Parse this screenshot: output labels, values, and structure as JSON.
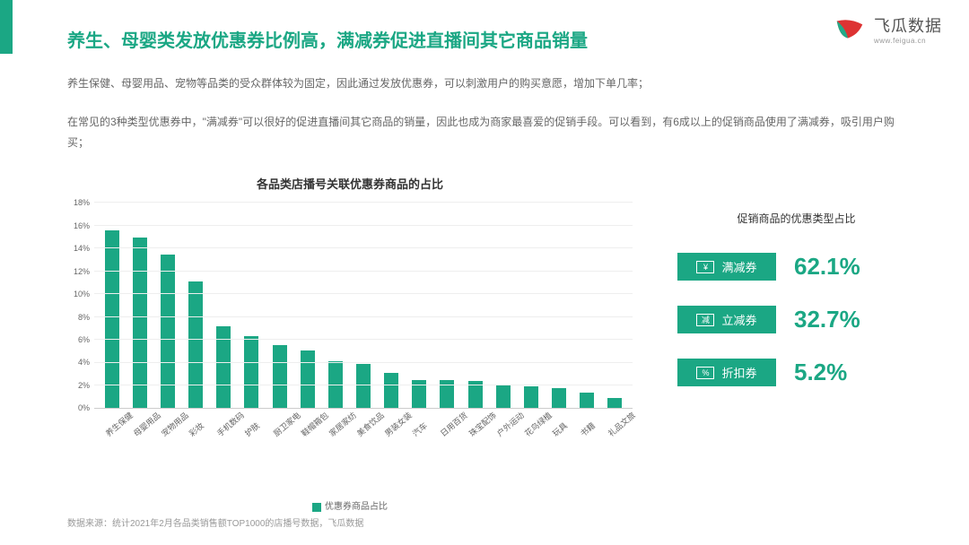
{
  "brand": {
    "title": "飞瓜数据",
    "url": "www.feigua.cn"
  },
  "colors": {
    "primary": "#1ba784",
    "text": "#666",
    "grid": "#eee"
  },
  "title": "养生、母婴类发放优惠券比例高，满减券促进直播间其它商品销量",
  "desc1": "养生保健、母婴用品、宠物等品类的受众群体较为固定，因此通过发放优惠券，可以刺激用户的购买意愿，增加下单几率；",
  "desc2": "在常见的3种类型优惠券中，\"满减券\"可以很好的促进直播间其它商品的销量，因此也成为商家最喜爱的促销手段。可以看到，有6成以上的促销商品使用了满减券，吸引用户购买；",
  "chart": {
    "title": "各品类店播号关联优惠券商品的占比",
    "type": "bar",
    "ymax": 18,
    "ytick": 2,
    "categories": [
      "养生保健",
      "母婴用品",
      "宠物用品",
      "彩妆",
      "手机数码",
      "护肤",
      "厨卫家电",
      "鞋帽箱包",
      "家居家纺",
      "美食饮品",
      "男装女装",
      "汽车",
      "日用百货",
      "珠宝配饰",
      "户外运动",
      "花鸟绿植",
      "玩具",
      "书籍",
      "礼品文旅"
    ],
    "values": [
      15.6,
      15.0,
      13.5,
      11.1,
      7.2,
      6.3,
      5.5,
      5.1,
      4.1,
      3.9,
      3.1,
      2.5,
      2.5,
      2.4,
      2.1,
      1.9,
      1.8,
      1.4,
      0.9
    ],
    "bar_color": "#1ba784",
    "legend": "优惠券商品占比"
  },
  "right": {
    "title": "促销商品的优惠类型占比",
    "stats": [
      {
        "icon": "¥",
        "label": "满减券",
        "value": "62.1%"
      },
      {
        "icon": "减",
        "label": "立减券",
        "value": "32.7%"
      },
      {
        "icon": "%",
        "label": "折扣券",
        "value": "5.2%"
      }
    ]
  },
  "footer": "数据来源：统计2021年2月各品类销售额TOP1000的店播号数据，飞瓜数据"
}
